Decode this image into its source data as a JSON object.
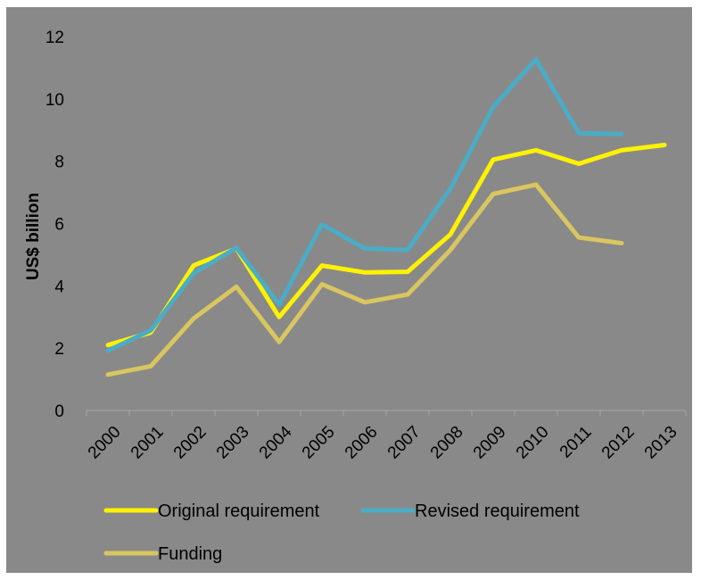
{
  "chart_data": {
    "type": "line",
    "ylabel": "US$ billion",
    "ylim": [
      0,
      12
    ],
    "yticks": [
      "0",
      "2",
      "4",
      "6",
      "8",
      "10",
      "12"
    ],
    "categories": [
      "2000",
      "2001",
      "2002",
      "2003",
      "2004",
      "2005",
      "2006",
      "2007",
      "2008",
      "2009",
      "2010",
      "2011",
      "2012",
      "2013"
    ],
    "grid": false,
    "legend_position": "bottom",
    "series": [
      {
        "name": "Original requirement",
        "color": "#FFF200",
        "values": [
          2.1,
          2.5,
          4.65,
          5.2,
          3.0,
          4.65,
          4.43,
          4.45,
          5.65,
          8.05,
          8.35,
          7.92,
          8.35,
          8.52
        ]
      },
      {
        "name": "Revised requirement",
        "color": "#4BACC6",
        "values": [
          1.92,
          2.57,
          4.4,
          5.22,
          3.4,
          5.97,
          5.2,
          5.15,
          7.12,
          9.75,
          11.27,
          8.9,
          8.87,
          null
        ]
      },
      {
        "name": "Funding",
        "color": "#D9C660",
        "values": [
          1.15,
          1.42,
          2.95,
          3.97,
          2.2,
          4.05,
          3.47,
          3.72,
          5.15,
          6.95,
          7.25,
          5.55,
          5.37,
          null
        ]
      }
    ]
  }
}
